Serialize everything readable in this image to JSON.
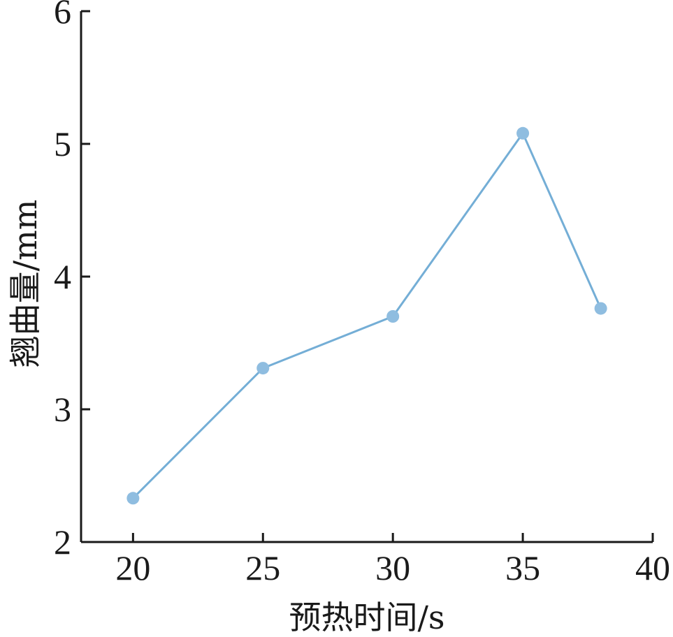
{
  "chart_data": {
    "type": "line",
    "title": "",
    "xlabel": "预热时间/s",
    "ylabel": "翘曲量/mm",
    "xlim": [
      18,
      40
    ],
    "ylim": [
      2,
      6
    ],
    "x_ticks": [
      20,
      25,
      30,
      35,
      40
    ],
    "y_ticks": [
      2,
      3,
      4,
      5,
      6
    ],
    "grid": false,
    "legend": "none",
    "series": [
      {
        "x": [
          20,
          25,
          30,
          35,
          38
        ],
        "values": [
          2.33,
          3.31,
          3.7,
          5.08,
          3.76
        ],
        "color": "#74aed6",
        "marker_color": "#8fbde0"
      }
    ]
  }
}
